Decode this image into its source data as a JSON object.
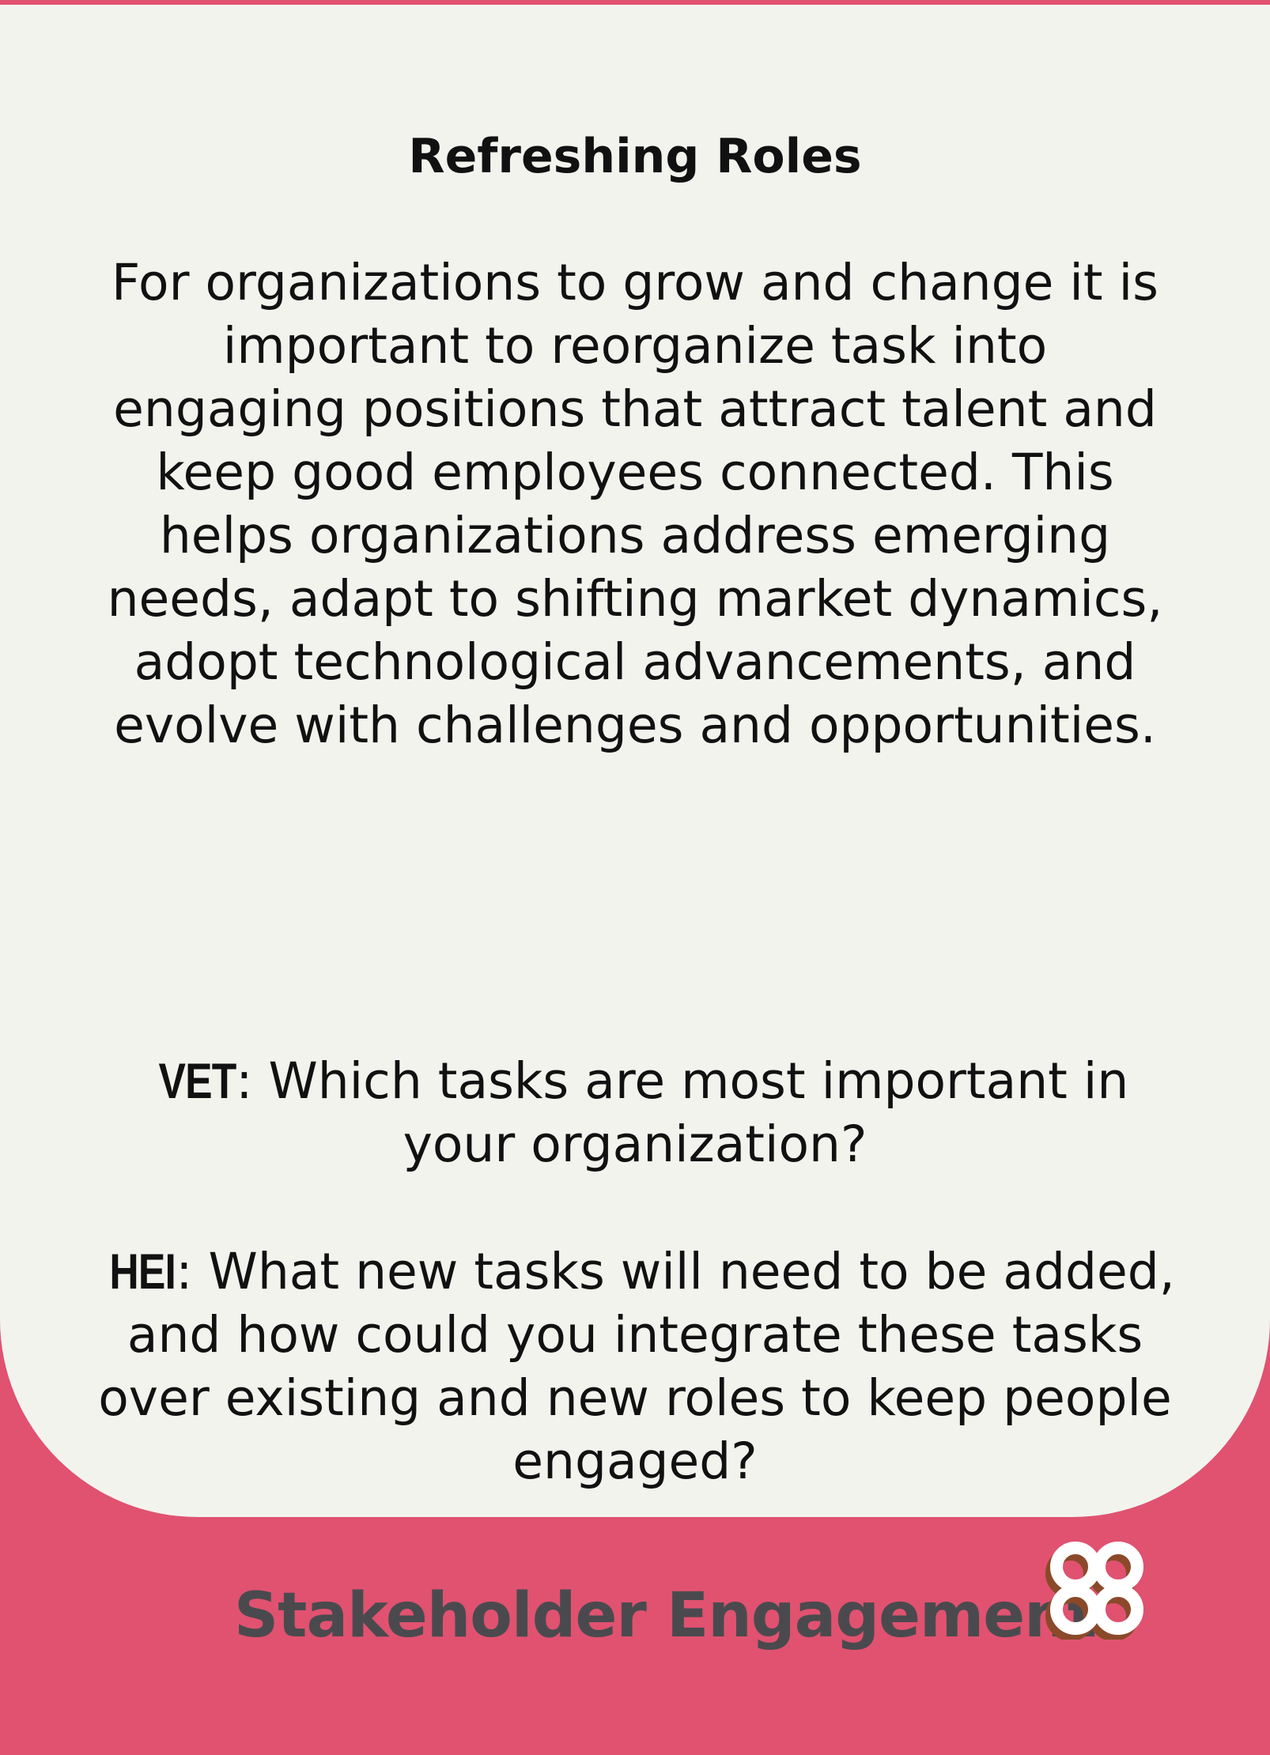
{
  "card": {
    "title": "Refreshing Roles",
    "body": "For organizations to grow and change it is important to reorganize task into engaging positions that attract talent and keep good employees connected. This helps organizations address emerging needs, adapt to shifting market dynamics, adopt technological advancements, and evolve with challenges and opportunities.",
    "questions": [
      {
        "label": "VET",
        "text": ": Which tasks are most important in your organization?"
      },
      {
        "label": "HEI",
        "text": ": What new tasks will need to be added, and how could you integrate these tasks over existing and new roles to keep people engaged?"
      }
    ]
  },
  "footer": {
    "category": "Stakeholder Engagement",
    "logo_icon": "interlocking-loops-icon"
  },
  "colors": {
    "background_pink": "#e05270",
    "card_white": "#f3f3ee",
    "footer_text": "#4a4a4e",
    "logo_white": "#ffffff",
    "logo_shadow": "#8a4a2a"
  }
}
